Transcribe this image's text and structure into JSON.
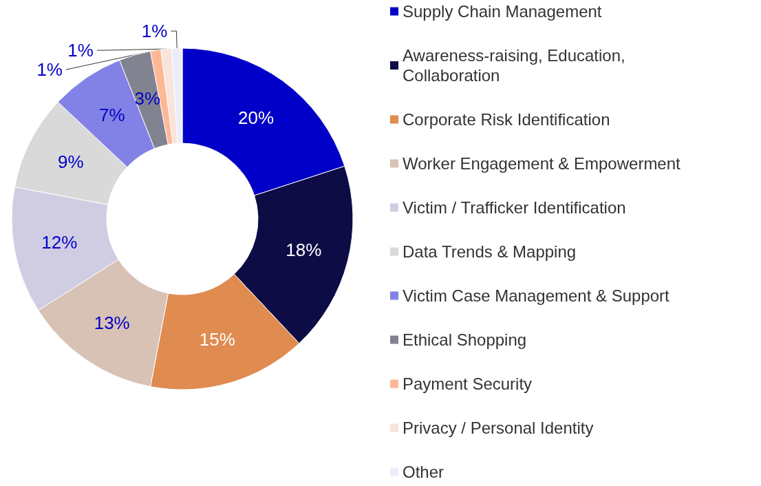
{
  "chart_data": {
    "type": "donut",
    "categories": [
      "Supply Chain Management",
      "Awareness-raising, Education, Collaboration",
      "Corporate Risk Identification",
      "Worker Engagement & Empowerment",
      "Victim / Trafficker Identification",
      "Data Trends & Mapping",
      "Victim Case Management & Support",
      "Ethical Shopping",
      "Payment Security",
      "Privacy / Personal Identity",
      "Other"
    ],
    "values": [
      20,
      18,
      15,
      13,
      12,
      9,
      7,
      3,
      1,
      1,
      1
    ],
    "colors": [
      "#0000c8",
      "#0d0c45",
      "#e08b50",
      "#d8c2b5",
      "#d0cde3",
      "#d9d9d9",
      "#8282e6",
      "#828391",
      "#ffb896",
      "#f8e4da",
      "#ececfc"
    ],
    "value_labels": [
      "20%",
      "18%",
      "15%",
      "13%",
      "12%",
      "9%",
      "7%",
      "3%",
      "1%",
      "1%",
      "1%"
    ],
    "legend": "right"
  }
}
